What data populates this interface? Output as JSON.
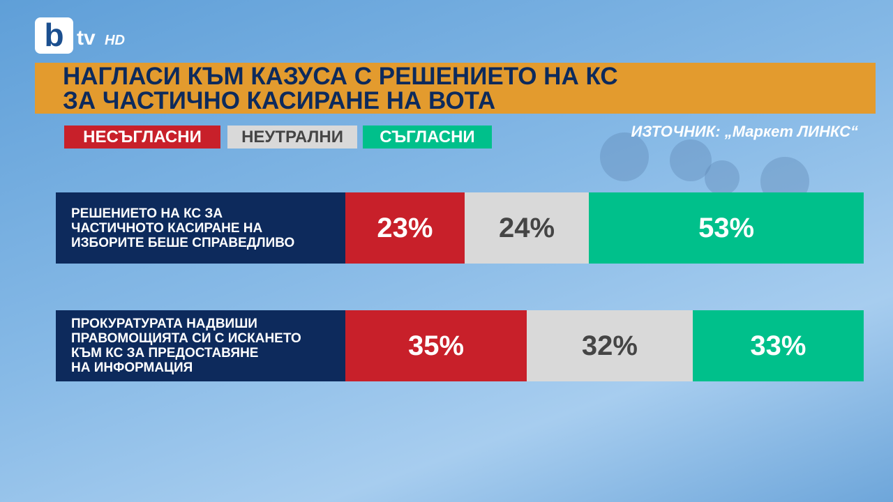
{
  "logo": {
    "mark": "b",
    "channel": "tv",
    "quality": "HD"
  },
  "chart_data": {
    "type": "bar",
    "orientation": "horizontal",
    "stacked": true,
    "title": "НАГЛАСИ КЪМ КАЗУСА С РЕШЕНИЕТО НА КС\nЗА ЧАСТИЧНО КАСИРАНЕ НА ВОТА",
    "source": "ИЗТОЧНИК: „Маркет ЛИНКС“",
    "categories": [
      "РЕШЕНИЕТО НА КС ЗА\nЧАСТИЧНОТО КАСИРАНЕ НА\nИЗБОРИТЕ БЕШЕ СПРАВЕДЛИВО",
      "ПРОКУРАТУРАТА НАДВИШИ\nПРАВОМОЩИЯТА СИ С ИСКАНЕТО\nКЪМ КС ЗА ПРЕДОСТАВЯНЕ\nНА ИНФОРМАЦИЯ"
    ],
    "xlim": [
      0,
      100
    ],
    "series": [
      {
        "name": "НЕСЪГЛАСНИ",
        "color": "#c8202a",
        "label_color": "#ffffff",
        "values": [
          23,
          35
        ],
        "value_labels": [
          "23%",
          "35%"
        ]
      },
      {
        "name": "НЕУТРАЛНИ",
        "color": "#d9d9d9",
        "label_color": "#454545",
        "values": [
          24,
          32
        ],
        "value_labels": [
          "24%",
          "32%"
        ]
      },
      {
        "name": "СЪГЛАСНИ",
        "color": "#00c08b",
        "label_color": "#ffffff",
        "values": [
          53,
          33
        ],
        "value_labels": [
          "53%",
          "33%"
        ]
      }
    ]
  }
}
